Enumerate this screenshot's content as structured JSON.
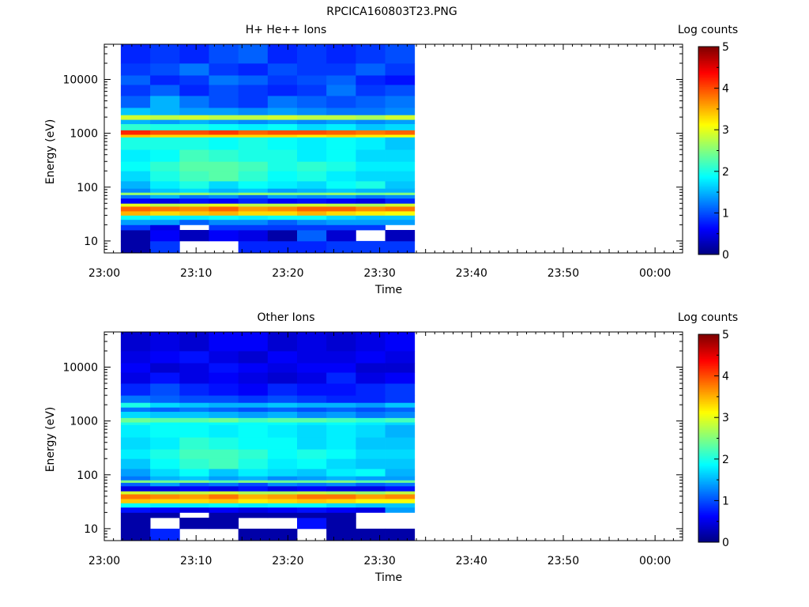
{
  "figure_title": "RPCICA160803T23.PNG",
  "colorbar_palette": [
    "#00007f",
    "#0000ff",
    "#0080ff",
    "#00ffff",
    "#80ff80",
    "#ffff00",
    "#ff8000",
    "#ff0000",
    "#7f0000"
  ],
  "chart_data": [
    {
      "type": "heatmap",
      "title": "H+ He++ Ions",
      "xlabel": "Time",
      "ylabel": "Energy (eV)",
      "x_ticks": [
        "23:00",
        "23:10",
        "23:20",
        "23:30",
        "23:40",
        "23:50",
        "00:00"
      ],
      "x_range_minutes": [
        0,
        63
      ],
      "y_scale": "log",
      "y_ticks": [
        "10",
        "100",
        "1000",
        "10000"
      ],
      "ylim": [
        6,
        45000
      ],
      "colorbar_label": "Log counts",
      "colorbar_ticks": [
        "0",
        "1",
        "2",
        "3",
        "4",
        "5"
      ],
      "colorbar_range": [
        0,
        5
      ],
      "time_bins_minutes": [
        1.8,
        5,
        8.2,
        11.4,
        14.6,
        17.8,
        21,
        24.2,
        27.4,
        30.6,
        33.8
      ],
      "energy_bins": [
        {
          "lo": 6,
          "hi": 10,
          "values": [
            0.2,
            0.9,
            null,
            null,
            0.8,
            0.8,
            0.8,
            0.9,
            0.9,
            0.9
          ]
        },
        {
          "lo": 10,
          "hi": 16,
          "values": [
            0.2,
            0.6,
            0.3,
            0.6,
            0.5,
            0.2,
            1.1,
            0.4,
            null,
            0.3
          ]
        },
        {
          "lo": 16,
          "hi": 20,
          "values": [
            0.9,
            0.5,
            null,
            0.9,
            0.9,
            0.9,
            0.9,
            0.9,
            0.9,
            null
          ]
        },
        {
          "lo": 20,
          "hi": 25,
          "values": [
            1.4,
            1.4,
            1.1,
            1.3,
            1.3,
            1.1,
            1.3,
            1.4,
            1.4,
            1.4
          ]
        },
        {
          "lo": 25,
          "hi": 30,
          "values": [
            1.9,
            1.8,
            1.8,
            1.9,
            1.8,
            1.9,
            1.9,
            1.7,
            1.6,
            1.6
          ]
        },
        {
          "lo": 30,
          "hi": 36,
          "values": [
            3.5,
            3.3,
            3.4,
            3.5,
            3.3,
            3.3,
            3.5,
            3.3,
            3.2,
            3.1
          ]
        },
        {
          "lo": 36,
          "hi": 44,
          "values": [
            3.9,
            3.8,
            3.7,
            3.9,
            3.6,
            3.7,
            3.9,
            3.9,
            3.7,
            3.8
          ]
        },
        {
          "lo": 44,
          "hi": 50,
          "values": [
            3.0,
            2.8,
            2.9,
            3.0,
            2.8,
            2.8,
            2.9,
            2.8,
            2.7,
            2.9
          ]
        },
        {
          "lo": 50,
          "hi": 62,
          "values": [
            0.6,
            0.5,
            0.7,
            0.6,
            0.8,
            0.6,
            0.7,
            0.6,
            0.5,
            0.8
          ]
        },
        {
          "lo": 62,
          "hi": 72,
          "values": [
            1.2,
            1.5,
            1.2,
            1.3,
            1.1,
            1.4,
            1.3,
            1.4,
            1.2,
            1.3
          ]
        },
        {
          "lo": 72,
          "hi": 80,
          "values": [
            2.6,
            2.5,
            2.6,
            2.4,
            2.6,
            2.5,
            2.5,
            2.6,
            2.4,
            2.5
          ]
        },
        {
          "lo": 80,
          "hi": 95,
          "values": [
            1.3,
            1.6,
            1.7,
            1.5,
            1.6,
            1.4,
            1.5,
            1.6,
            1.5,
            1.5
          ]
        },
        {
          "lo": 95,
          "hi": 130,
          "values": [
            1.5,
            1.8,
            2.0,
            1.7,
            1.9,
            1.8,
            1.7,
            1.9,
            2.0,
            1.6
          ]
        },
        {
          "lo": 130,
          "hi": 200,
          "values": [
            1.7,
            2.0,
            2.2,
            2.3,
            2.1,
            1.9,
            2.0,
            1.8,
            1.7,
            1.7
          ]
        },
        {
          "lo": 200,
          "hi": 300,
          "values": [
            1.9,
            2.1,
            2.3,
            2.3,
            2.2,
            2.0,
            2.1,
            2.0,
            1.8,
            1.8
          ]
        },
        {
          "lo": 300,
          "hi": 500,
          "values": [
            1.8,
            1.9,
            2.2,
            2.1,
            2.0,
            2.0,
            1.8,
            1.9,
            1.7,
            1.7
          ]
        },
        {
          "lo": 500,
          "hi": 850,
          "values": [
            2.0,
            2.0,
            2.0,
            1.9,
            2.0,
            1.9,
            1.8,
            1.9,
            1.8,
            1.6
          ]
        },
        {
          "lo": 850,
          "hi": 950,
          "values": [
            3.4,
            3.3,
            3.3,
            3.3,
            3.3,
            3.3,
            3.2,
            3.3,
            3.2,
            3.1
          ]
        },
        {
          "lo": 950,
          "hi": 1150,
          "values": [
            4.2,
            4.0,
            4.0,
            4.1,
            3.9,
            4.0,
            4.0,
            3.9,
            3.8,
            3.9
          ]
        },
        {
          "lo": 1150,
          "hi": 1500,
          "values": [
            2.1,
            2.0,
            2.0,
            1.9,
            1.8,
            1.9,
            1.7,
            1.8,
            1.6,
            1.7
          ]
        },
        {
          "lo": 1500,
          "hi": 1800,
          "values": [
            1.5,
            1.4,
            1.5,
            1.4,
            1.3,
            1.4,
            1.3,
            1.4,
            1.3,
            1.4
          ]
        },
        {
          "lo": 1800,
          "hi": 2200,
          "values": [
            2.9,
            2.8,
            2.9,
            2.8,
            2.8,
            2.9,
            2.8,
            2.8,
            2.7,
            2.9
          ]
        },
        {
          "lo": 2200,
          "hi": 3000,
          "values": [
            1.6,
            1.5,
            1.4,
            1.4,
            1.3,
            1.4,
            1.3,
            1.2,
            1.2,
            1.3
          ]
        },
        {
          "lo": 3000,
          "hi": 5000,
          "values": [
            1.1,
            1.5,
            1.2,
            1.0,
            0.9,
            1.2,
            1.1,
            1.0,
            1.1,
            1.2
          ]
        },
        {
          "lo": 5000,
          "hi": 8000,
          "values": [
            0.9,
            1.1,
            0.8,
            1.0,
            0.9,
            0.8,
            0.9,
            1.2,
            0.9,
            1.0
          ]
        },
        {
          "lo": 8000,
          "hi": 12000,
          "values": [
            1.1,
            0.8,
            0.9,
            1.2,
            1.1,
            0.9,
            1.0,
            1.1,
            0.8,
            0.7
          ]
        },
        {
          "lo": 12000,
          "hi": 20000,
          "values": [
            0.9,
            1.0,
            1.2,
            0.9,
            0.8,
            1.0,
            0.9,
            0.9,
            1.1,
            0.9
          ]
        },
        {
          "lo": 20000,
          "hi": 45000,
          "values": [
            0.8,
            0.9,
            0.8,
            1.0,
            1.1,
            0.8,
            0.9,
            0.8,
            0.9,
            1.0
          ]
        }
      ]
    },
    {
      "type": "heatmap",
      "title": "Other Ions",
      "xlabel": "Time",
      "ylabel": "Energy (eV)",
      "x_ticks": [
        "23:00",
        "23:10",
        "23:20",
        "23:30",
        "23:40",
        "23:50",
        "00:00"
      ],
      "x_range_minutes": [
        0,
        63
      ],
      "y_scale": "log",
      "y_ticks": [
        "10",
        "100",
        "1000",
        "10000"
      ],
      "ylim": [
        6,
        45000
      ],
      "colorbar_label": "Log counts",
      "colorbar_ticks": [
        "0",
        "1",
        "2",
        "3",
        "4",
        "5"
      ],
      "colorbar_range": [
        0,
        5
      ],
      "time_bins_minutes": [
        1.8,
        5,
        8.2,
        11.4,
        14.6,
        17.8,
        21,
        24.2,
        27.4,
        30.6,
        33.8
      ],
      "energy_bins": [
        {
          "lo": 6,
          "hi": 10,
          "values": [
            0.2,
            0.8,
            null,
            null,
            0.2,
            0.2,
            null,
            0.2,
            0.2,
            0.2
          ]
        },
        {
          "lo": 10,
          "hi": 16,
          "values": [
            0.2,
            null,
            0.2,
            0.2,
            null,
            null,
            0.7,
            0.2,
            null,
            null
          ]
        },
        {
          "lo": 16,
          "hi": 20,
          "values": [
            0.2,
            0.2,
            null,
            0.2,
            0.2,
            0.2,
            0.2,
            0.2,
            null,
            null
          ]
        },
        {
          "lo": 20,
          "hi": 25,
          "values": [
            0.7,
            0.6,
            0.5,
            0.6,
            0.5,
            0.6,
            0.7,
            0.6,
            0.5,
            1.4
          ]
        },
        {
          "lo": 25,
          "hi": 30,
          "values": [
            1.9,
            1.8,
            1.8,
            1.9,
            1.8,
            1.9,
            1.9,
            1.7,
            1.6,
            1.6
          ]
        },
        {
          "lo": 30,
          "hi": 36,
          "values": [
            3.4,
            3.3,
            3.3,
            3.4,
            3.2,
            3.3,
            3.4,
            3.3,
            3.1,
            3.1
          ]
        },
        {
          "lo": 36,
          "hi": 44,
          "values": [
            3.8,
            3.7,
            3.6,
            3.8,
            3.5,
            3.6,
            3.8,
            3.8,
            3.6,
            3.7
          ]
        },
        {
          "lo": 44,
          "hi": 50,
          "values": [
            2.9,
            2.7,
            2.8,
            2.9,
            2.7,
            2.7,
            2.8,
            2.7,
            2.6,
            2.8
          ]
        },
        {
          "lo": 50,
          "hi": 62,
          "values": [
            0.5,
            0.5,
            0.6,
            0.5,
            0.7,
            0.5,
            0.6,
            0.5,
            0.5,
            0.7
          ]
        },
        {
          "lo": 62,
          "hi": 72,
          "values": [
            1.1,
            1.4,
            1.1,
            1.2,
            1.0,
            1.3,
            1.2,
            1.3,
            1.1,
            1.2
          ]
        },
        {
          "lo": 72,
          "hi": 80,
          "values": [
            2.5,
            2.4,
            2.5,
            2.3,
            2.5,
            2.4,
            2.4,
            2.5,
            2.3,
            2.4
          ]
        },
        {
          "lo": 80,
          "hi": 95,
          "values": [
            1.2,
            1.5,
            1.6,
            1.4,
            1.5,
            1.3,
            1.4,
            1.5,
            1.4,
            1.4
          ]
        },
        {
          "lo": 95,
          "hi": 130,
          "values": [
            1.4,
            1.7,
            1.9,
            1.6,
            1.8,
            1.7,
            1.6,
            1.8,
            1.9,
            1.5
          ]
        },
        {
          "lo": 130,
          "hi": 200,
          "values": [
            1.6,
            1.9,
            2.1,
            2.2,
            2.0,
            1.8,
            1.9,
            1.7,
            1.6,
            1.6
          ]
        },
        {
          "lo": 200,
          "hi": 300,
          "values": [
            1.8,
            2.0,
            2.2,
            2.2,
            2.1,
            1.9,
            2.0,
            1.9,
            1.7,
            1.7
          ]
        },
        {
          "lo": 300,
          "hi": 500,
          "values": [
            1.7,
            1.8,
            2.1,
            2.0,
            1.9,
            1.9,
            1.7,
            1.8,
            1.6,
            1.6
          ]
        },
        {
          "lo": 500,
          "hi": 850,
          "values": [
            1.8,
            1.9,
            1.9,
            1.8,
            1.9,
            1.8,
            1.7,
            1.8,
            1.7,
            1.5
          ]
        },
        {
          "lo": 850,
          "hi": 950,
          "values": [
            2.0,
            1.9,
            1.9,
            1.9,
            1.9,
            1.9,
            1.8,
            1.9,
            1.8,
            1.7
          ]
        },
        {
          "lo": 950,
          "hi": 1150,
          "values": [
            2.4,
            2.3,
            2.3,
            2.4,
            2.2,
            2.3,
            2.3,
            2.2,
            2.1,
            2.2
          ]
        },
        {
          "lo": 1150,
          "hi": 1500,
          "values": [
            1.7,
            1.6,
            1.6,
            1.5,
            1.4,
            1.5,
            1.3,
            1.4,
            1.2,
            1.3
          ]
        },
        {
          "lo": 1500,
          "hi": 1800,
          "values": [
            1.2,
            1.1,
            1.2,
            1.1,
            1.0,
            1.1,
            1.0,
            1.1,
            1.0,
            1.1
          ]
        },
        {
          "lo": 1800,
          "hi": 2200,
          "values": [
            2.0,
            1.7,
            1.6,
            1.5,
            1.5,
            1.6,
            1.5,
            1.5,
            1.4,
            1.6
          ]
        },
        {
          "lo": 2200,
          "hi": 3000,
          "values": [
            1.2,
            1.1,
            1.0,
            1.0,
            0.9,
            1.0,
            0.9,
            0.8,
            0.8,
            0.9
          ]
        },
        {
          "lo": 3000,
          "hi": 5000,
          "values": [
            0.8,
            1.0,
            0.8,
            0.7,
            0.6,
            0.8,
            0.7,
            0.7,
            0.8,
            0.9
          ]
        },
        {
          "lo": 5000,
          "hi": 8000,
          "values": [
            0.5,
            0.7,
            0.5,
            0.6,
            0.5,
            0.4,
            0.5,
            0.8,
            0.5,
            0.6
          ]
        },
        {
          "lo": 8000,
          "hi": 12000,
          "values": [
            0.6,
            0.4,
            0.5,
            0.7,
            0.6,
            0.5,
            0.6,
            0.6,
            0.4,
            0.4
          ]
        },
        {
          "lo": 12000,
          "hi": 20000,
          "values": [
            0.5,
            0.6,
            0.7,
            0.5,
            0.4,
            0.6,
            0.5,
            0.5,
            0.6,
            0.5
          ]
        },
        {
          "lo": 20000,
          "hi": 45000,
          "values": [
            0.4,
            0.5,
            0.4,
            0.6,
            0.6,
            0.4,
            0.5,
            0.4,
            0.5,
            0.6
          ]
        }
      ]
    }
  ]
}
